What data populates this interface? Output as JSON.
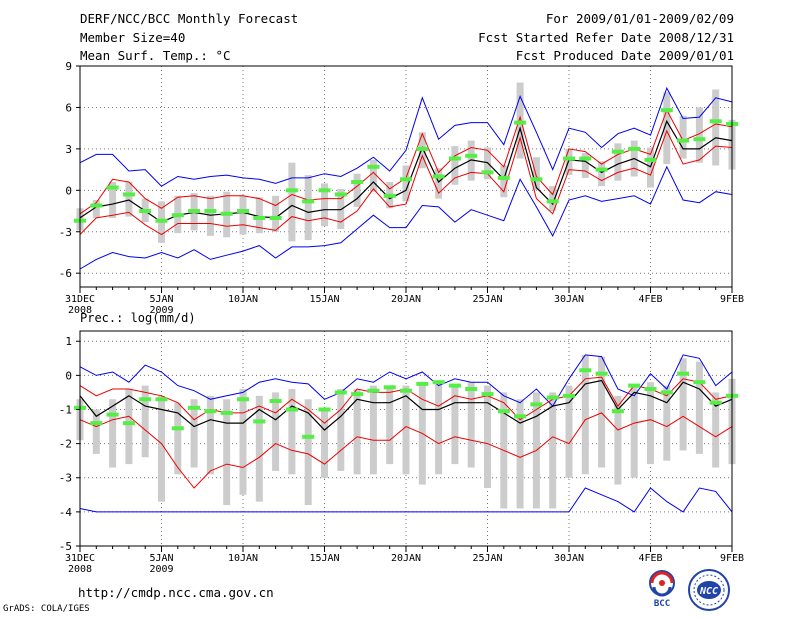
{
  "header": {
    "left": [
      "DERF/NCC/BCC Monthly Forecast",
      "Member Size=40",
      "Mean Surf. Temp.: °C"
    ],
    "right": [
      "For 2009/01/01-2009/02/09",
      "Fcst Started Refer Date 2008/12/31",
      "Fcst Produced Date 2009/01/01"
    ]
  },
  "footer": {
    "url": "http://cmdp.ncc.cma.gov.cn",
    "grads": "GrADS: COLA/IGES"
  },
  "logos": {
    "left_text": "BCC",
    "right_text": "NCC"
  },
  "colors": {
    "envelope": "#0000ee",
    "spread": "#ee0000",
    "mean": "#000000",
    "obs": "#55ee44",
    "box": "#cccccc"
  },
  "chart_data": [
    {
      "type": "line",
      "id": "temp",
      "title": "Mean Surf. Temp.: °C",
      "ylim": [
        -7,
        9
      ],
      "yticks": [
        -6,
        -3,
        0,
        3,
        6,
        9
      ],
      "xlim": [
        0,
        40
      ],
      "xticks": [
        0,
        5,
        10,
        15,
        20,
        25,
        30,
        35,
        40
      ],
      "xtick_labels": [
        "31DEC",
        "5JAN",
        "10JAN",
        "15JAN",
        "20JAN",
        "25JAN",
        "30JAN",
        "4FEB",
        "9FEB"
      ],
      "xtick_sublabels": {
        "0": "2008",
        "5": "2009"
      },
      "grid": true,
      "series": [
        {
          "name": "max",
          "values": [
            2.0,
            2.6,
            2.6,
            1.4,
            1.5,
            0.3,
            1.0,
            0.8,
            1.0,
            1.1,
            0.9,
            0.8,
            0.5,
            0.9,
            0.9,
            1.2,
            1.0,
            1.6,
            2.4,
            1.4,
            2.9,
            6.7,
            3.7,
            4.7,
            4.9,
            4.9,
            3.3,
            6.8,
            4.2,
            1.5,
            4.5,
            4.2,
            3.1,
            4.1,
            4.5,
            4.0,
            7.4,
            5.2,
            5.3,
            6.7,
            6.4
          ]
        },
        {
          "name": "upper",
          "values": [
            -1.7,
            -0.9,
            0.8,
            0.6,
            -0.6,
            -1.3,
            -0.5,
            -0.4,
            -0.6,
            -0.4,
            -0.4,
            -0.6,
            -1.1,
            -0.3,
            -0.7,
            -0.6,
            -0.6,
            0.3,
            1.3,
            0.1,
            0.9,
            4.1,
            1.3,
            2.5,
            3.1,
            2.9,
            1.7,
            5.3,
            1.0,
            -0.3,
            3.0,
            2.8,
            1.9,
            2.6,
            3.0,
            2.6,
            5.8,
            3.6,
            4.1,
            4.8,
            4.6
          ]
        },
        {
          "name": "mean",
          "values": [
            -2.0,
            -1.2,
            -1.0,
            -0.7,
            -1.5,
            -2.3,
            -1.8,
            -1.6,
            -1.8,
            -1.7,
            -1.6,
            -1.9,
            -2.0,
            -1.1,
            -1.6,
            -1.4,
            -1.4,
            -0.6,
            0.6,
            -0.6,
            0.0,
            3.1,
            0.6,
            1.6,
            2.2,
            2.0,
            0.8,
            4.5,
            0.2,
            -1.0,
            2.2,
            2.1,
            1.3,
            1.9,
            2.3,
            1.7,
            5.0,
            3.0,
            3.0,
            3.8,
            3.6
          ]
        },
        {
          "name": "lower",
          "values": [
            -3.2,
            -2.0,
            -1.8,
            -1.6,
            -2.5,
            -3.2,
            -2.4,
            -2.4,
            -2.4,
            -2.6,
            -2.5,
            -2.7,
            -2.9,
            -1.9,
            -2.2,
            -2.0,
            -2.3,
            -1.5,
            0.1,
            -1.2,
            -1.0,
            2.5,
            -0.2,
            0.9,
            1.3,
            1.2,
            -0.1,
            3.8,
            -0.6,
            -1.7,
            1.5,
            1.4,
            0.7,
            1.3,
            1.6,
            1.1,
            4.3,
            1.9,
            2.2,
            3.2,
            3.1
          ]
        },
        {
          "name": "min",
          "values": [
            -5.7,
            -5.0,
            -4.5,
            -4.8,
            -4.9,
            -4.5,
            -4.9,
            -4.3,
            -5.0,
            -4.7,
            -4.4,
            -4.0,
            -4.9,
            -4.1,
            -4.1,
            -4.0,
            -3.8,
            -2.8,
            -1.8,
            -2.7,
            -2.7,
            -1.1,
            -1.2,
            -2.3,
            -1.4,
            -1.8,
            -2.2,
            0.8,
            -1.2,
            -3.3,
            -0.7,
            -0.4,
            -0.8,
            -0.6,
            -0.4,
            -1.0,
            1.7,
            -0.7,
            -0.9,
            -0.1,
            -0.3
          ]
        },
        {
          "name": "observed",
          "values": [
            -2.2,
            -1.1,
            0.2,
            -0.3,
            -1.5,
            -2.2,
            -1.8,
            -1.5,
            -1.5,
            -1.7,
            -1.5,
            -2.0,
            -2.0,
            0.0,
            -0.8,
            0.0,
            -0.3,
            0.6,
            1.7,
            -0.4,
            0.8,
            3.0,
            1.0,
            2.3,
            2.5,
            1.3,
            0.9,
            4.9,
            0.8,
            -0.8,
            2.3,
            2.3,
            1.5,
            2.8,
            3.0,
            2.2,
            5.8,
            3.6,
            3.7,
            5.0,
            4.8
          ]
        },
        {
          "name": "box_high",
          "values": [
            -1.3,
            -0.7,
            0.6,
            0.6,
            -0.6,
            -0.8,
            -0.4,
            -0.2,
            -0.4,
            -0.1,
            -0.4,
            -0.5,
            -0.4,
            2.0,
            1.1,
            0.5,
            0.1,
            1.2,
            2.2,
            0.6,
            1.8,
            4.2,
            1.6,
            3.2,
            3.6,
            3.1,
            1.8,
            7.8,
            2.4,
            0.3,
            3.0,
            2.7,
            2.1,
            3.4,
            3.6,
            3.1,
            7.1,
            5.4,
            6.0,
            7.3,
            5.1
          ]
        },
        {
          "name": "box_low",
          "values": [
            -2.9,
            -2.0,
            -2.0,
            -1.9,
            -2.3,
            -3.8,
            -3.1,
            -2.9,
            -3.3,
            -3.4,
            -3.2,
            -3.1,
            -3.0,
            -3.7,
            -3.6,
            -2.6,
            -2.8,
            -1.2,
            -0.1,
            -1.3,
            -0.8,
            1.6,
            -0.6,
            0.4,
            0.7,
            0.8,
            -0.5,
            2.3,
            0.0,
            -1.5,
            1.1,
            0.9,
            0.3,
            0.7,
            1.0,
            0.2,
            1.9,
            2.3,
            2.0,
            1.8,
            1.5
          ]
        }
      ]
    },
    {
      "type": "line",
      "id": "prec",
      "title": "Prec.: log(mm/d)",
      "ylim": [
        -5,
        1.3
      ],
      "yticks": [
        -5,
        -4,
        -3,
        -2,
        -1,
        0,
        1
      ],
      "xlim": [
        0,
        40
      ],
      "xticks": [
        0,
        5,
        10,
        15,
        20,
        25,
        30,
        35,
        40
      ],
      "xtick_labels": [
        "31DEC",
        "5JAN",
        "10JAN",
        "15JAN",
        "20JAN",
        "25JAN",
        "30JAN",
        "4FEB",
        "9FEB"
      ],
      "xtick_sublabels": {
        "0": "2008",
        "5": "2009"
      },
      "grid": true,
      "series": [
        {
          "name": "max",
          "values": [
            0.25,
            0.0,
            0.1,
            -0.2,
            0.3,
            0.1,
            -0.3,
            -0.45,
            -0.7,
            -0.6,
            -0.5,
            -0.2,
            -0.1,
            -0.2,
            -0.25,
            -0.7,
            -0.5,
            -0.1,
            -0.2,
            0.1,
            -0.1,
            0.1,
            -0.3,
            -0.1,
            -0.2,
            -0.2,
            -0.6,
            -0.8,
            -0.4,
            -0.9,
            -0.1,
            0.6,
            0.55,
            -0.4,
            -0.6,
            0.05,
            -0.4,
            0.6,
            0.5,
            -0.3,
            0.1
          ]
        },
        {
          "name": "upper",
          "values": [
            -0.3,
            -0.6,
            -0.4,
            -0.4,
            -0.5,
            -0.6,
            -0.8,
            -1.3,
            -1.0,
            -1.1,
            -1.1,
            -0.9,
            -1.1,
            -0.7,
            -1.0,
            -1.4,
            -1.0,
            -0.4,
            -0.5,
            -0.5,
            -0.4,
            -0.7,
            -0.9,
            -0.6,
            -0.7,
            -0.6,
            -0.8,
            -1.3,
            -1.0,
            -0.7,
            -0.6,
            -0.1,
            -0.05,
            -0.9,
            -0.3,
            -0.4,
            -0.6,
            -0.1,
            -0.2,
            -0.7,
            -0.6
          ]
        },
        {
          "name": "mean",
          "values": [
            -0.6,
            -1.2,
            -0.9,
            -0.6,
            -0.9,
            -1.0,
            -1.1,
            -1.5,
            -1.3,
            -1.4,
            -1.4,
            -1.0,
            -1.3,
            -0.9,
            -1.1,
            -1.6,
            -1.2,
            -0.7,
            -0.8,
            -0.8,
            -0.6,
            -1.0,
            -1.0,
            -0.8,
            -0.8,
            -0.8,
            -1.1,
            -1.4,
            -1.2,
            -0.9,
            -0.8,
            -0.25,
            -0.15,
            -1.0,
            -0.5,
            -0.6,
            -0.8,
            -0.2,
            -0.4,
            -0.9,
            -0.7
          ]
        },
        {
          "name": "lower",
          "values": [
            -1.3,
            -1.5,
            -1.3,
            -1.2,
            -1.6,
            -2.0,
            -2.7,
            -3.3,
            -2.8,
            -2.6,
            -2.7,
            -2.4,
            -2.0,
            -2.2,
            -2.3,
            -2.6,
            -2.2,
            -1.8,
            -1.9,
            -1.9,
            -1.5,
            -1.7,
            -2.0,
            -1.8,
            -1.9,
            -2.0,
            -2.2,
            -2.4,
            -2.2,
            -1.8,
            -2.0,
            -1.3,
            -1.1,
            -1.6,
            -1.4,
            -1.3,
            -1.5,
            -1.2,
            -1.5,
            -1.8,
            -1.5
          ]
        },
        {
          "name": "min",
          "values": [
            -3.9,
            -4.0,
            -4.0,
            -4.0,
            -4.0,
            -4.0,
            -4.0,
            -4.0,
            -4.0,
            -4.0,
            -4.0,
            -4.0,
            -4.0,
            -4.0,
            -4.0,
            -4.0,
            -4.0,
            -4.0,
            -4.0,
            -4.0,
            -4.0,
            -4.0,
            -4.0,
            -4.0,
            -4.0,
            -4.0,
            -4.0,
            -4.0,
            -4.0,
            -4.0,
            -4.0,
            -3.3,
            -3.5,
            -3.7,
            -4.0,
            -3.3,
            -3.7,
            -4.0,
            -3.3,
            -3.4,
            -4.0
          ]
        },
        {
          "name": "observed",
          "values": [
            -0.95,
            -1.4,
            -1.15,
            -1.4,
            -0.7,
            -0.7,
            -1.55,
            -0.95,
            -1.05,
            -1.1,
            -0.7,
            -1.35,
            -0.75,
            -1.0,
            -1.8,
            -1.0,
            -0.5,
            -0.55,
            -0.45,
            -0.35,
            -0.45,
            -0.25,
            -0.2,
            -0.3,
            -0.4,
            -0.55,
            -1.05,
            -1.2,
            -0.85,
            -0.65,
            -0.6,
            0.15,
            0.05,
            -1.05,
            -0.3,
            -0.4,
            -0.5,
            0.05,
            -0.2,
            -0.8,
            -0.6
          ]
        },
        {
          "name": "box_high",
          "values": [
            -0.7,
            -1.0,
            -0.7,
            -0.4,
            -0.3,
            -0.6,
            -0.8,
            -0.7,
            -0.6,
            -0.7,
            -0.4,
            -0.6,
            -0.5,
            -0.4,
            -0.7,
            -1.0,
            -0.4,
            -0.4,
            -0.3,
            -0.3,
            -0.3,
            -0.2,
            -0.2,
            -0.3,
            -0.2,
            -0.3,
            -0.5,
            -0.7,
            -0.5,
            -0.5,
            -0.3,
            0.6,
            0.55,
            -0.6,
            -0.3,
            -0.2,
            -0.3,
            0.5,
            0.4,
            -0.5,
            -0.1
          ]
        },
        {
          "name": "box_low",
          "values": [
            -1.9,
            -2.3,
            -2.7,
            -2.6,
            -2.4,
            -3.7,
            -2.9,
            -2.7,
            -2.9,
            -3.8,
            -3.5,
            -3.7,
            -2.8,
            -2.9,
            -3.8,
            -3.0,
            -2.8,
            -2.9,
            -2.9,
            -2.6,
            -2.9,
            -3.2,
            -2.9,
            -2.6,
            -2.7,
            -3.3,
            -3.9,
            -3.9,
            -3.9,
            -3.9,
            -3.0,
            -2.9,
            -2.7,
            -3.2,
            -3.0,
            -2.6,
            -2.5,
            -2.2,
            -2.3,
            -2.7,
            -2.6
          ]
        }
      ]
    }
  ]
}
